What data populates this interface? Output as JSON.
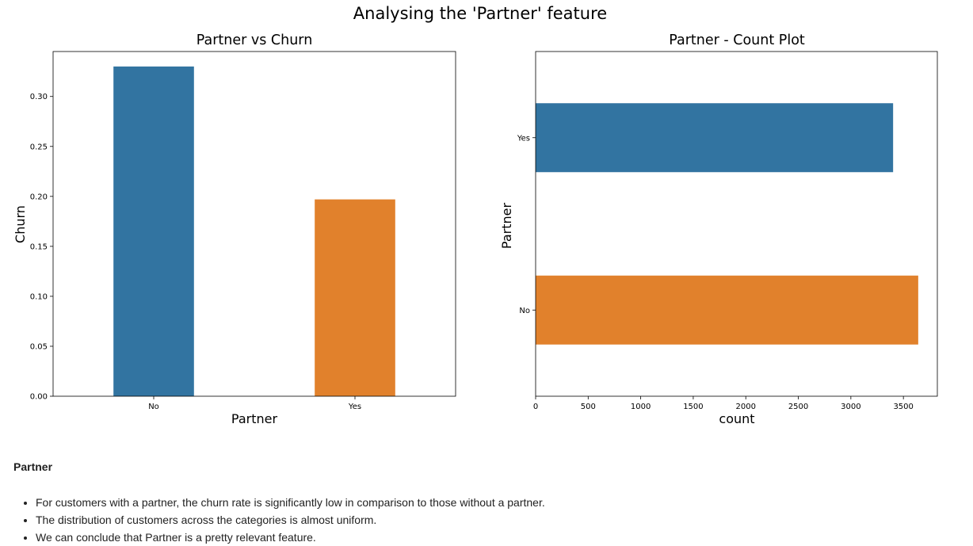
{
  "figure": {
    "suptitle": "Analysing the 'Partner' feature"
  },
  "chart_data": [
    {
      "type": "bar",
      "title": "Partner vs Churn",
      "xlabel": "Partner",
      "ylabel": "Churn",
      "categories": [
        "No",
        "Yes"
      ],
      "values": [
        0.33,
        0.197
      ],
      "colors": [
        "#3274a1",
        "#e1812c"
      ],
      "ylim": [
        0,
        0.345
      ],
      "yticks": [
        "0.00",
        "0.05",
        "0.10",
        "0.15",
        "0.20",
        "0.25",
        "0.30"
      ],
      "grid": false
    },
    {
      "type": "bar",
      "orientation": "horizontal",
      "title": "Partner - Count Plot",
      "xlabel": "count",
      "ylabel": "Partner",
      "categories": [
        "Yes",
        "No"
      ],
      "values": [
        3402,
        3641
      ],
      "colors": [
        "#3274a1",
        "#e1812c"
      ],
      "xlim": [
        0,
        3823
      ],
      "xticks": [
        "0",
        "500",
        "1000",
        "1500",
        "2000",
        "2500",
        "3000",
        "3500"
      ],
      "grid": false
    }
  ],
  "notes": {
    "heading": "Partner",
    "bullets": [
      "For customers with a partner, the churn rate is significantly low in comparison to those without a partner.",
      "The distribution of customers across the categories is almost uniform.",
      "We can conclude that Partner is a pretty relevant feature."
    ]
  }
}
